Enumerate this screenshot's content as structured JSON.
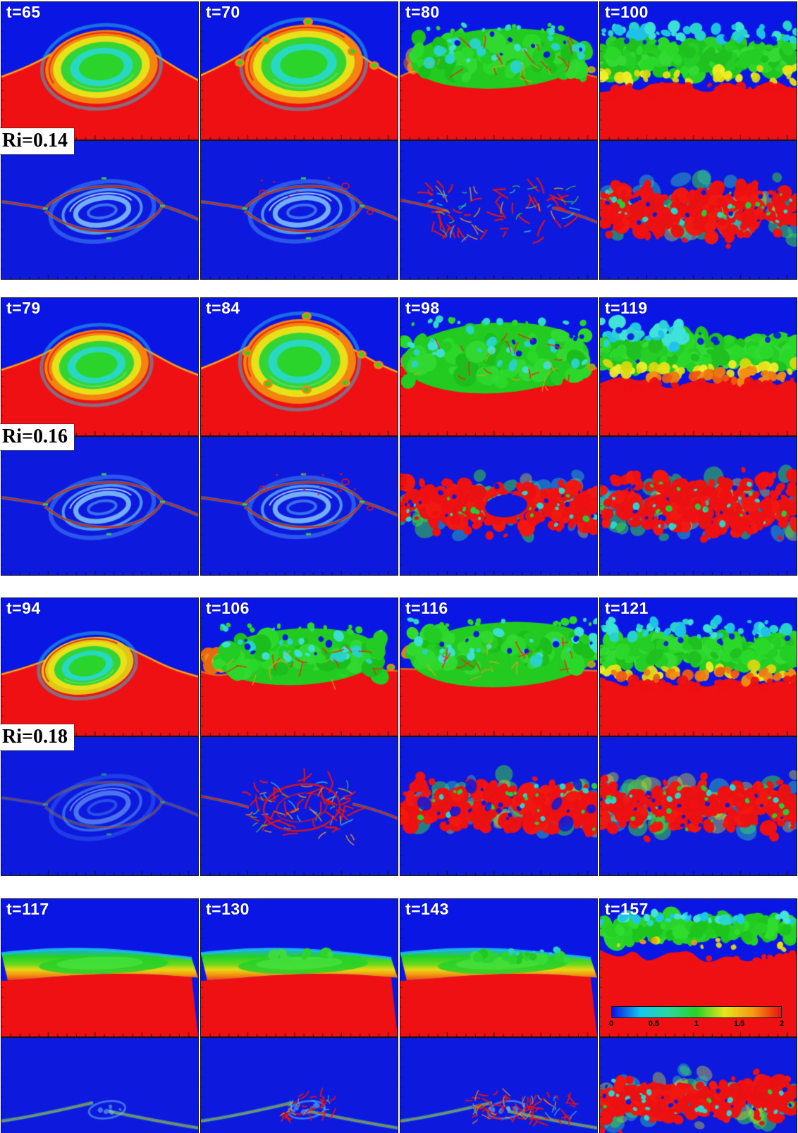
{
  "figure": {
    "rows": [
      {
        "ri_label": "Ri=0.14",
        "panels": [
          {
            "time": "t=65",
            "top_stage": "kh-billow-vortex",
            "bottom_stage": "braid-eye"
          },
          {
            "time": "t=70",
            "top_stage": "kh-billow-secondary-curls",
            "bottom_stage": "braid-eye-curls"
          },
          {
            "time": "t=80",
            "top_stage": "turbulent-mixing-patch",
            "bottom_stage": "turbulent-filament-patch"
          },
          {
            "time": "t=100",
            "top_stage": "turbulent-mixed-band",
            "bottom_stage": "turbulent-band"
          }
        ]
      },
      {
        "ri_label": "Ri=0.16",
        "panels": [
          {
            "time": "t=79",
            "top_stage": "kh-billow-vortex",
            "bottom_stage": "braid-eye"
          },
          {
            "time": "t=84",
            "top_stage": "kh-billow-secondary-curls",
            "bottom_stage": "braid-eye-curls"
          },
          {
            "time": "t=98",
            "top_stage": "turbulent-mixing-patch",
            "bottom_stage": "turbulent-band-with-hole"
          },
          {
            "time": "t=119",
            "top_stage": "turbulent-mixed-band",
            "bottom_stage": "turbulent-band"
          }
        ]
      },
      {
        "ri_label": "Ri=0.18",
        "panels": [
          {
            "time": "t=94",
            "top_stage": "kh-billow-weak",
            "bottom_stage": "braid-eye-weak"
          },
          {
            "time": "t=106",
            "top_stage": "turbulent-mixing-patch",
            "bottom_stage": "turbulent-ring-patch"
          },
          {
            "time": "t=116",
            "top_stage": "turbulent-mixing-band",
            "bottom_stage": "turbulent-band-patchy"
          },
          {
            "time": "t=121",
            "top_stage": "turbulent-mixed-band",
            "bottom_stage": "turbulent-band"
          }
        ]
      },
      {
        "ri_label": "",
        "panels": [
          {
            "time": "t=117",
            "top_stage": "laminar-stratified-layer",
            "bottom_stage": "smooth-braid"
          },
          {
            "time": "t=130",
            "top_stage": "laminar-layer-bump",
            "bottom_stage": "braid-small-patch"
          },
          {
            "time": "t=143",
            "top_stage": "laminar-layer-wisps",
            "bottom_stage": "braid-medium-patch"
          },
          {
            "time": "t=157",
            "top_stage": "turbulent-band-with-colorbar",
            "bottom_stage": "turbulent-band"
          }
        ]
      }
    ],
    "colorbar": {
      "tick_labels": [
        "0",
        "0.5",
        "1",
        "1.5",
        "2"
      ],
      "min": 0,
      "max": 2,
      "colors": [
        "#0c10e6",
        "#15c6ea",
        "#2cd6a0",
        "#28d228",
        "#e8e61c",
        "#f59a12",
        "#ee1111"
      ]
    },
    "palette": {
      "field_blue": "#0a16e4",
      "field_red": "#ee1013",
      "field_green": "#28d228",
      "field_cyan": "#28d2cc",
      "field_yellow": "#e8e61c",
      "field_orange": "#f29012"
    }
  },
  "chart_data": {
    "type": "heatmap",
    "title": "",
    "grid": {
      "n_rows": 4,
      "n_cols": 4,
      "fields_per_cell": 2
    },
    "row_labels": [
      "Ri=0.14",
      "Ri=0.16",
      "Ri=0.18",
      ""
    ],
    "snapshot_times": [
      [
        65,
        70,
        80,
        100
      ],
      [
        79,
        84,
        98,
        119
      ],
      [
        94,
        106,
        116,
        121
      ],
      [
        117,
        130,
        143,
        157
      ]
    ],
    "colorbar": {
      "range": [
        0,
        2
      ],
      "ticks": [
        0,
        0.5,
        1,
        1.5,
        2
      ],
      "orientation": "horizontal"
    }
  }
}
